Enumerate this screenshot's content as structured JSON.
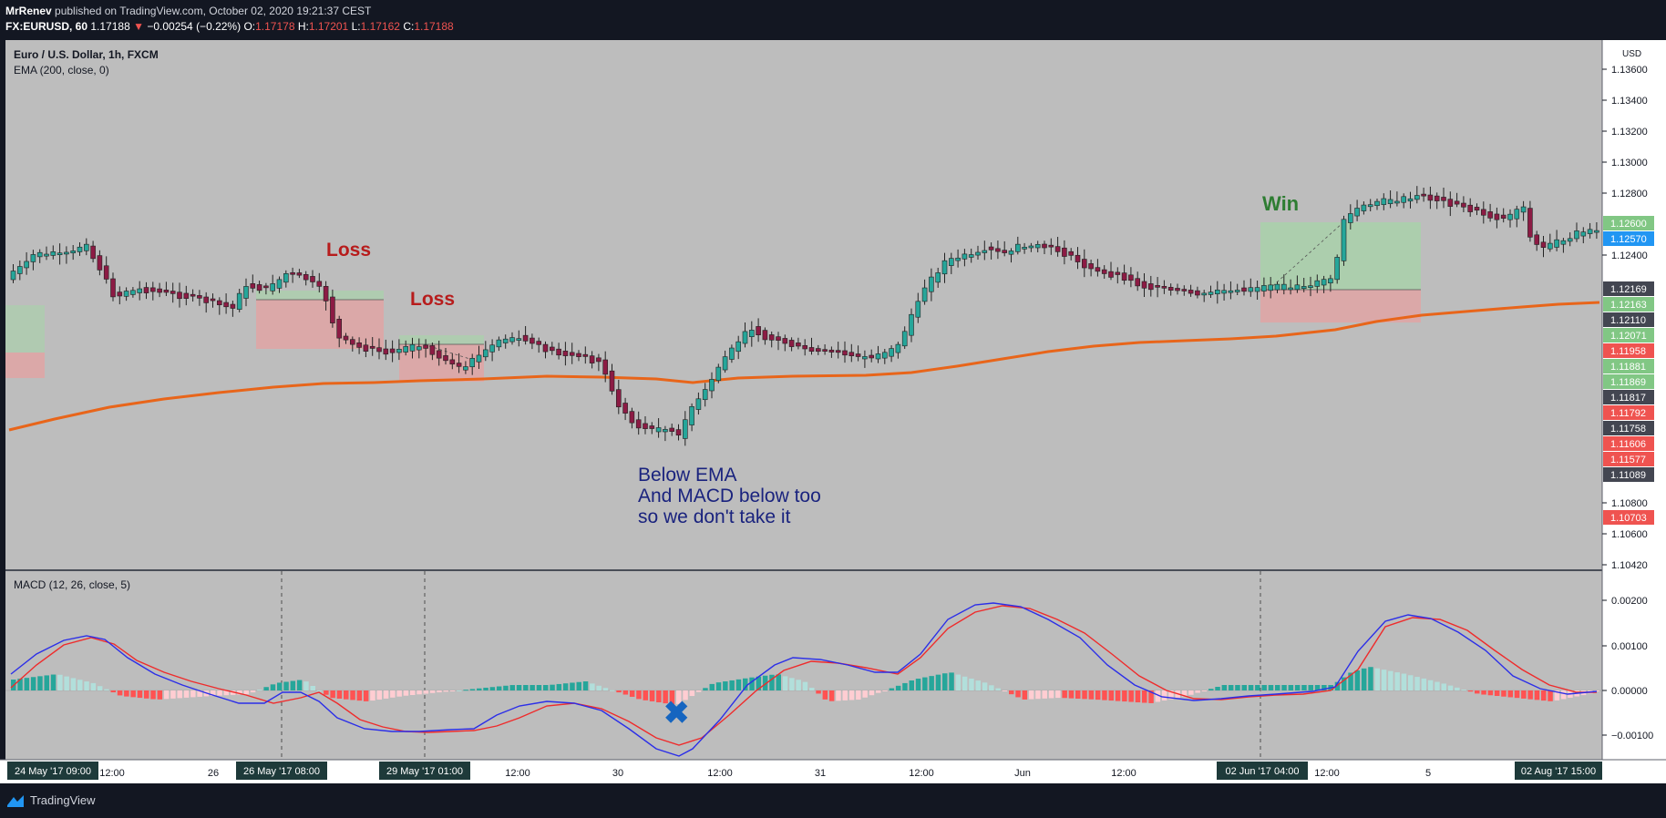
{
  "header": {
    "publisher": "MrRenev",
    "published_text": "published on TradingView.com, October 02, 2020 19:21:37 CEST",
    "symbol": "FX:EURUSD, 60",
    "last_price": "1.17188",
    "change": "−0.00254 (−0.22%)",
    "open_label": "O:",
    "open": "1.17178",
    "high_label": "H:",
    "high": "1.17201",
    "low_label": "L:",
    "low": "1.17162",
    "close_label": "C:",
    "close": "1.17188"
  },
  "chart": {
    "title": "Euro / U.S. Dollar, 1h, FXCM",
    "indicator": "EMA (200, close, 0)",
    "currency": "USD",
    "annotations": {
      "loss1": "Loss",
      "loss2": "Loss",
      "win": "Win",
      "note_line1": "Below EMA",
      "note_line2": "And MACD below too",
      "note_line3": "so we don't take it",
      "cross_icon": "cross-mark"
    }
  },
  "macd": {
    "title": "MACD (12, 26, close, 5)"
  },
  "xaxis": {
    "ticks": [
      "12:00",
      "26",
      "12:00",
      "30",
      "12:00",
      "31",
      "12:00",
      "Jun",
      "12:00",
      "12:00",
      "5"
    ],
    "badges": [
      "24 May '17   09:00",
      "26 May '17   08:00",
      "29 May '17   01:00",
      "02 Jun '17   04:00",
      "02 Aug '17   15:00"
    ]
  },
  "price_axis": {
    "ticks": [
      "1.13600",
      "1.13400",
      "1.13200",
      "1.13000",
      "1.12800",
      "1.12400",
      "1.10800",
      "1.10600",
      "1.10420"
    ],
    "labels": [
      {
        "text": "1.12600",
        "color": "#81c784"
      },
      {
        "text": "1.12570",
        "color": "#2196f3"
      },
      {
        "text": "1.12169",
        "color": "#434651"
      },
      {
        "text": "1.12163",
        "color": "#81c784"
      },
      {
        "text": "1.12110",
        "color": "#434651"
      },
      {
        "text": "1.12071",
        "color": "#81c784"
      },
      {
        "text": "1.11958",
        "color": "#ef5350"
      },
      {
        "text": "1.11881",
        "color": "#81c784"
      },
      {
        "text": "1.11869",
        "color": "#81c784"
      },
      {
        "text": "1.11817",
        "color": "#434651"
      },
      {
        "text": "1.11792",
        "color": "#ef5350"
      },
      {
        "text": "1.11758",
        "color": "#434651"
      },
      {
        "text": "1.11606",
        "color": "#ef5350"
      },
      {
        "text": "1.11577",
        "color": "#ef5350"
      },
      {
        "text": "1.11089",
        "color": "#434651"
      },
      {
        "text": "1.10703",
        "color": "#ef5350"
      }
    ]
  },
  "macd_axis": {
    "ticks": [
      "0.00200",
      "0.00100",
      "0.00000",
      "−0.00100"
    ]
  },
  "footer": {
    "brand": "TradingView"
  },
  "colors": {
    "bull": "#26a69a",
    "bear": "#8c1b44",
    "ema": "#e8651a",
    "macd_line": "#2b2ee8",
    "signal_line": "#ef2b2b",
    "hist_up_strong": "#26a69a",
    "hist_up_weak": "#b2dfdb",
    "hist_down_strong": "#ff5252",
    "hist_down_weak": "#ffcdd2"
  }
}
